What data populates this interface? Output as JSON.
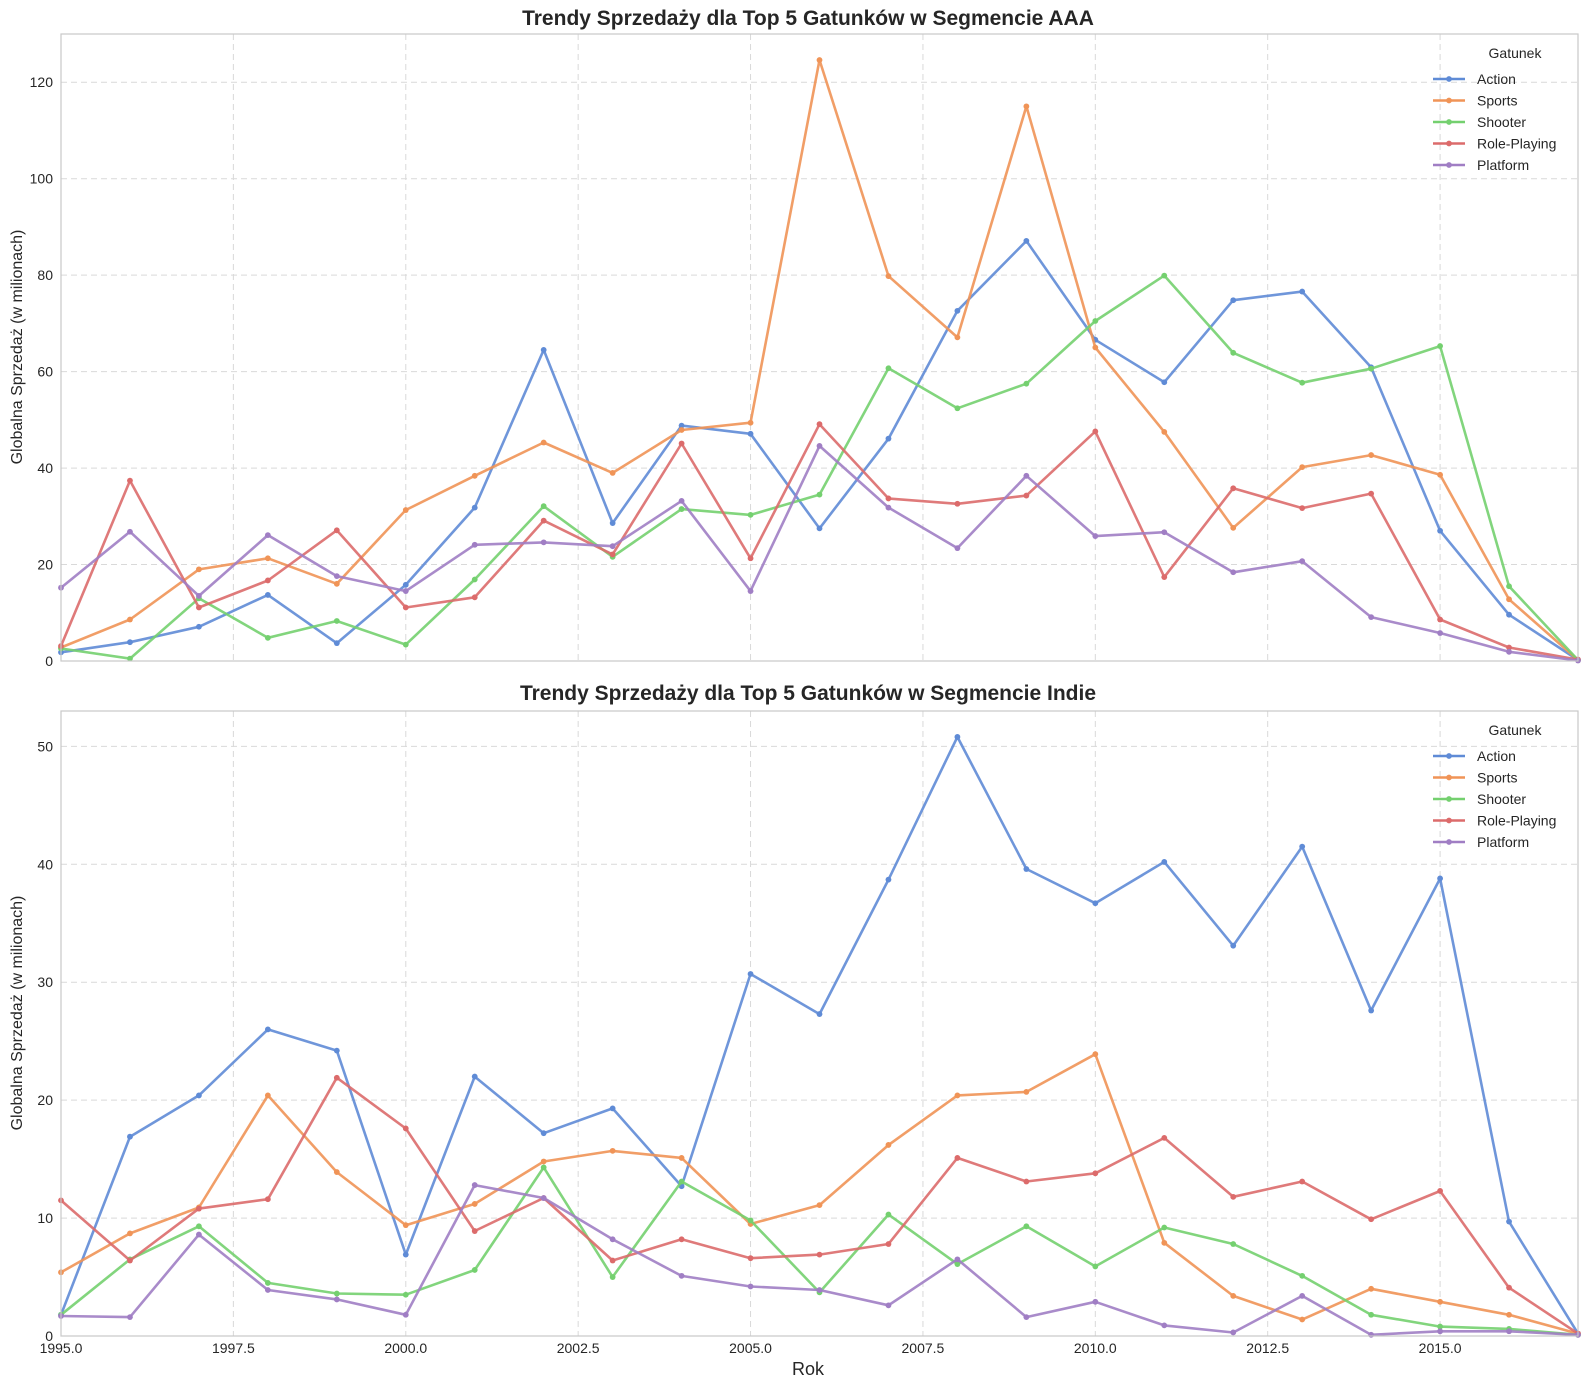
{
  "colors": {
    "Action": "#5f8bd6",
    "Sports": "#f09457",
    "Shooter": "#74d06f",
    "Role-Playing": "#dc6b6b",
    "Platform": "#a07ec4"
  },
  "legend_title": "Gatunek",
  "chart_data": [
    {
      "type": "line",
      "title": "Trendy Sprzedaży dla Top 5 Gatunków w Segmencie AAA",
      "ylabel": "Globalna Sprzedaż (w milionach)",
      "xlabel": "",
      "xlim": [
        1995,
        2017
      ],
      "ylim": [
        0,
        130
      ],
      "xticks": [
        1995.0,
        1997.5,
        2000.0,
        2002.5,
        2005.0,
        2007.5,
        2010.0,
        2012.5,
        2015.0
      ],
      "xtick_labels": [
        "1995.0",
        "1997.5",
        "2000.0",
        "2002.5",
        "2005.0",
        "2007.5",
        "2010.0",
        "2012.5",
        "2015.0"
      ],
      "show_xtick_labels": false,
      "yticks": [
        0,
        20,
        40,
        60,
        80,
        100,
        120
      ],
      "grid": true,
      "legend_position": "top-right",
      "x": [
        1995,
        1996,
        1997,
        1998,
        1999,
        2000,
        2001,
        2002,
        2003,
        2004,
        2005,
        2006,
        2007,
        2008,
        2009,
        2010,
        2011,
        2012,
        2013,
        2014,
        2015,
        2016,
        2017
      ],
      "series": [
        {
          "name": "Action",
          "values": [
            1.8,
            3.9,
            7.1,
            13.7,
            3.7,
            15.8,
            31.8,
            64.5,
            28.6,
            48.8,
            47.1,
            27.5,
            46.1,
            72.6,
            87.1,
            66.6,
            57.8,
            74.8,
            76.6,
            60.9,
            27.0,
            9.6,
            0.2
          ]
        },
        {
          "name": "Sports",
          "values": [
            2.8,
            8.6,
            19.0,
            21.3,
            16.0,
            31.3,
            38.4,
            45.3,
            39.0,
            47.9,
            49.4,
            124.6,
            79.8,
            67.1,
            115.0,
            65.0,
            47.5,
            27.6,
            40.2,
            42.7,
            38.6,
            12.8,
            0.2
          ]
        },
        {
          "name": "Shooter",
          "values": [
            2.6,
            0.5,
            13.0,
            4.8,
            8.3,
            3.4,
            16.9,
            32.1,
            21.6,
            31.5,
            30.3,
            34.5,
            60.7,
            52.4,
            57.5,
            70.5,
            79.9,
            63.9,
            57.7,
            60.6,
            65.3,
            15.5,
            0.2
          ]
        },
        {
          "name": "Role-Playing",
          "values": [
            3.1,
            37.4,
            11.1,
            16.7,
            27.1,
            11.1,
            13.2,
            29.1,
            22.1,
            45.1,
            21.3,
            49.1,
            33.7,
            32.6,
            34.3,
            47.6,
            17.4,
            35.8,
            31.7,
            34.7,
            8.6,
            2.8,
            0.3
          ]
        },
        {
          "name": "Platform",
          "values": [
            15.2,
            26.8,
            13.5,
            26.1,
            17.6,
            14.5,
            24.1,
            24.6,
            23.8,
            33.2,
            14.5,
            44.6,
            31.8,
            23.4,
            38.4,
            25.9,
            26.7,
            18.4,
            20.7,
            9.1,
            5.8,
            1.9,
            0.1
          ]
        }
      ]
    },
    {
      "type": "line",
      "title": "Trendy Sprzedaży dla Top 5 Gatunków w Segmencie Indie",
      "ylabel": "Globalna Sprzedaż (w milionach)",
      "xlabel": "Rok",
      "xlim": [
        1995,
        2017
      ],
      "ylim": [
        0,
        53
      ],
      "xticks": [
        1995.0,
        1997.5,
        2000.0,
        2002.5,
        2005.0,
        2007.5,
        2010.0,
        2012.5,
        2015.0
      ],
      "xtick_labels": [
        "1995.0",
        "1997.5",
        "2000.0",
        "2002.5",
        "2005.0",
        "2007.5",
        "2010.0",
        "2012.5",
        "2015.0"
      ],
      "show_xtick_labels": true,
      "yticks": [
        0,
        10,
        20,
        30,
        40,
        50
      ],
      "grid": true,
      "legend_position": "top-right",
      "x": [
        1995,
        1996,
        1997,
        1998,
        1999,
        2000,
        2001,
        2002,
        2003,
        2004,
        2005,
        2006,
        2007,
        2008,
        2009,
        2010,
        2011,
        2012,
        2013,
        2014,
        2015,
        2016,
        2017
      ],
      "series": [
        {
          "name": "Action",
          "values": [
            1.8,
            16.9,
            20.4,
            26.0,
            24.2,
            6.9,
            22.0,
            17.2,
            19.3,
            12.7,
            30.7,
            27.3,
            38.7,
            50.8,
            39.6,
            36.7,
            40.2,
            33.1,
            41.5,
            27.6,
            38.8,
            9.7,
            0.2
          ]
        },
        {
          "name": "Sports",
          "values": [
            5.4,
            8.7,
            10.9,
            20.4,
            13.9,
            9.4,
            11.2,
            14.8,
            15.7,
            15.1,
            9.5,
            11.1,
            16.2,
            20.4,
            20.7,
            23.9,
            7.9,
            3.4,
            1.4,
            4.0,
            2.9,
            1.8,
            0.2
          ]
        },
        {
          "name": "Shooter",
          "values": [
            1.8,
            6.5,
            9.3,
            4.5,
            3.6,
            3.5,
            5.6,
            14.3,
            5.0,
            13.1,
            9.8,
            3.7,
            10.3,
            6.1,
            9.3,
            5.9,
            9.2,
            7.8,
            5.1,
            1.8,
            0.8,
            0.6,
            0.1
          ]
        },
        {
          "name": "Role-Playing",
          "values": [
            11.5,
            6.4,
            10.8,
            11.6,
            21.9,
            17.6,
            8.9,
            11.7,
            6.4,
            8.2,
            6.6,
            6.9,
            7.8,
            15.1,
            13.1,
            13.8,
            16.8,
            11.8,
            13.1,
            9.9,
            12.3,
            4.1,
            0.2
          ]
        },
        {
          "name": "Platform",
          "values": [
            1.7,
            1.6,
            8.6,
            3.9,
            3.1,
            1.8,
            12.8,
            11.7,
            8.2,
            5.1,
            4.2,
            3.9,
            2.6,
            6.5,
            1.6,
            2.9,
            0.9,
            0.3,
            3.4,
            0.1,
            0.4,
            0.4,
            0.1
          ]
        }
      ]
    }
  ]
}
